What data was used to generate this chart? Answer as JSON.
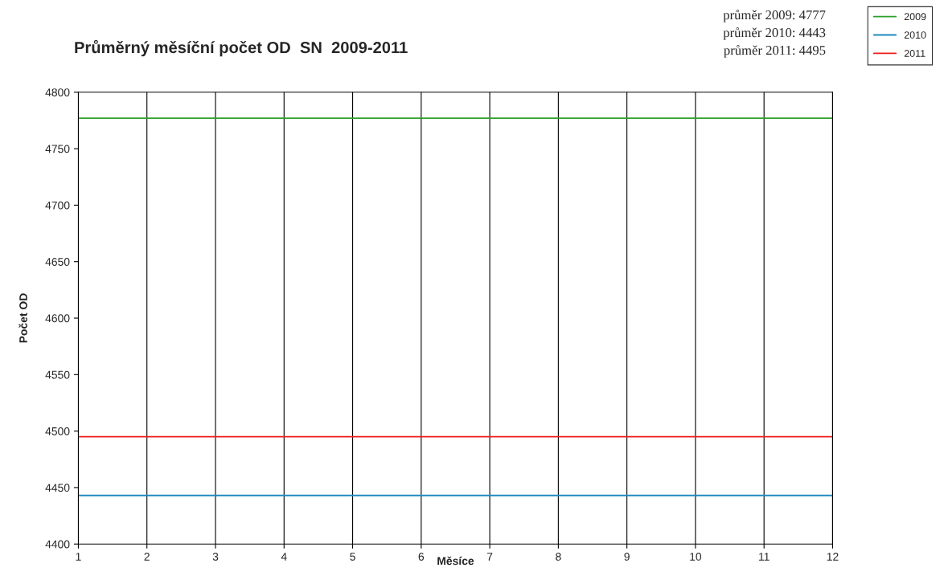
{
  "chart_data": {
    "type": "line",
    "title": "Průměrný měsíční počet OD  SN  2009-2011",
    "xlabel": "Měsíce",
    "ylabel": "Počet OD",
    "x": [
      1,
      12
    ],
    "series": [
      {
        "name": "2009",
        "color": "#2ca02c",
        "values": [
          4777,
          4777
        ]
      },
      {
        "name": "2010",
        "color": "#1f8ac0",
        "values": [
          4443,
          4443
        ]
      },
      {
        "name": "2011",
        "color": "#ee1c1c",
        "values": [
          4495,
          4495
        ]
      }
    ],
    "xlim": [
      1,
      12
    ],
    "xticks": [
      1,
      2,
      3,
      4,
      5,
      6,
      7,
      8,
      9,
      10,
      11,
      12
    ],
    "ylim": [
      4400,
      4800
    ],
    "yticks": [
      4400,
      4450,
      4500,
      4550,
      4600,
      4650,
      4700,
      4750,
      4800
    ],
    "grid": "x",
    "legend": "top right",
    "marker": "none",
    "line_style": "solid",
    "annotations": [
      "průměr 2009: 4777",
      "průměr 2010: 4443",
      "průměr 2011: 4495"
    ]
  }
}
